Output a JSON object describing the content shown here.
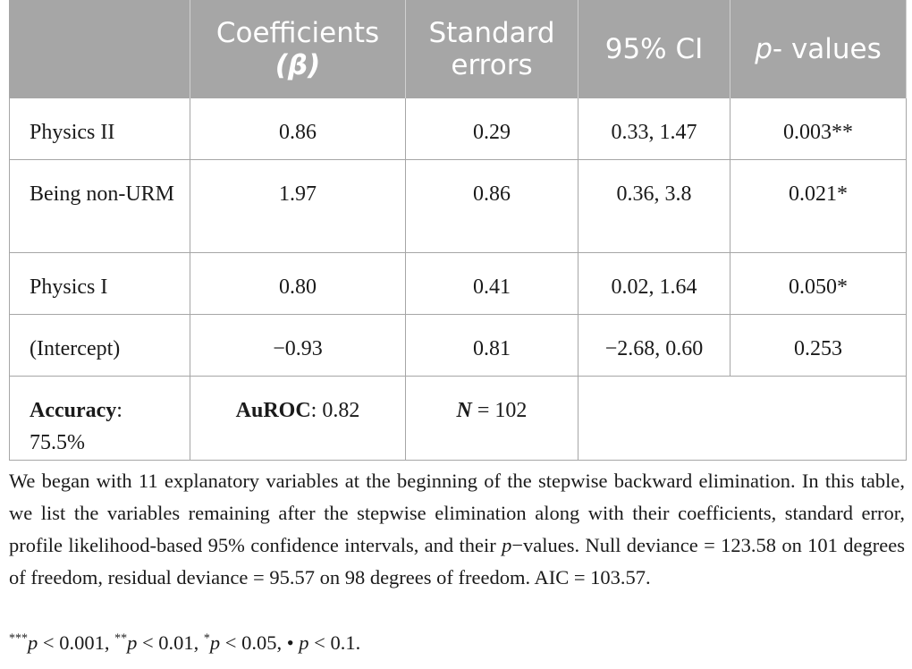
{
  "table": {
    "headers": {
      "variable": "",
      "coefficients": "Coefficients",
      "coefficients_symbol": "(β)",
      "standard_errors": "Standard errors",
      "ci": "95% CI",
      "p_values_italic": "p",
      "p_values": "- values"
    },
    "rows": [
      {
        "variable": "Physics II",
        "coefficient": "0.86",
        "se": "0.29",
        "ci": "0.33, 1.47",
        "p": "0.003**"
      },
      {
        "variable": "Being non-URM",
        "coefficient": "1.97",
        "se": "0.86",
        "ci": "0.36, 3.8",
        "p": "0.021*"
      },
      {
        "variable": "Physics I",
        "coefficient": "0.80",
        "se": "0.41",
        "ci": "0.02, 1.64",
        "p": "0.050*"
      },
      {
        "variable": "(Intercept)",
        "coefficient": "−0.93",
        "se": "0.81",
        "ci": "−2.68, 0.60",
        "p": "0.253"
      }
    ],
    "summary": {
      "accuracy_label": "Accuracy",
      "accuracy_value": ": 75.5%",
      "auroc_label": "AuROC",
      "auroc_value": ": 0.82",
      "n_label": "N",
      "n_value": " = 102"
    }
  },
  "note": {
    "part1": "We began with 11 explanatory variables at the beginning of the stepwise backward elimination. In this table, we list the variables remaining after the stepwise elimination along with their coefficients, standard error, profile likelihood-based 95% confidence intervals, and their ",
    "p_italic": "p",
    "part2": "−values. Null deviance = 123.58 on 101 degrees of freedom, residual deviance = 95.57 on 98 degrees of freedom. AIC = 103.57."
  },
  "significance": {
    "s1_sup": "***",
    "s1_p": "p",
    "s1_text": " < 0.001, ",
    "s2_sup": "**",
    "s2_p": "p",
    "s2_text": " < 0.01, ",
    "s3_sup": "*",
    "s3_p": "p",
    "s3_text": " < 0.05, ",
    "s4_sym": "•",
    "s4_p": "p",
    "s4_text": " < 0.1."
  }
}
